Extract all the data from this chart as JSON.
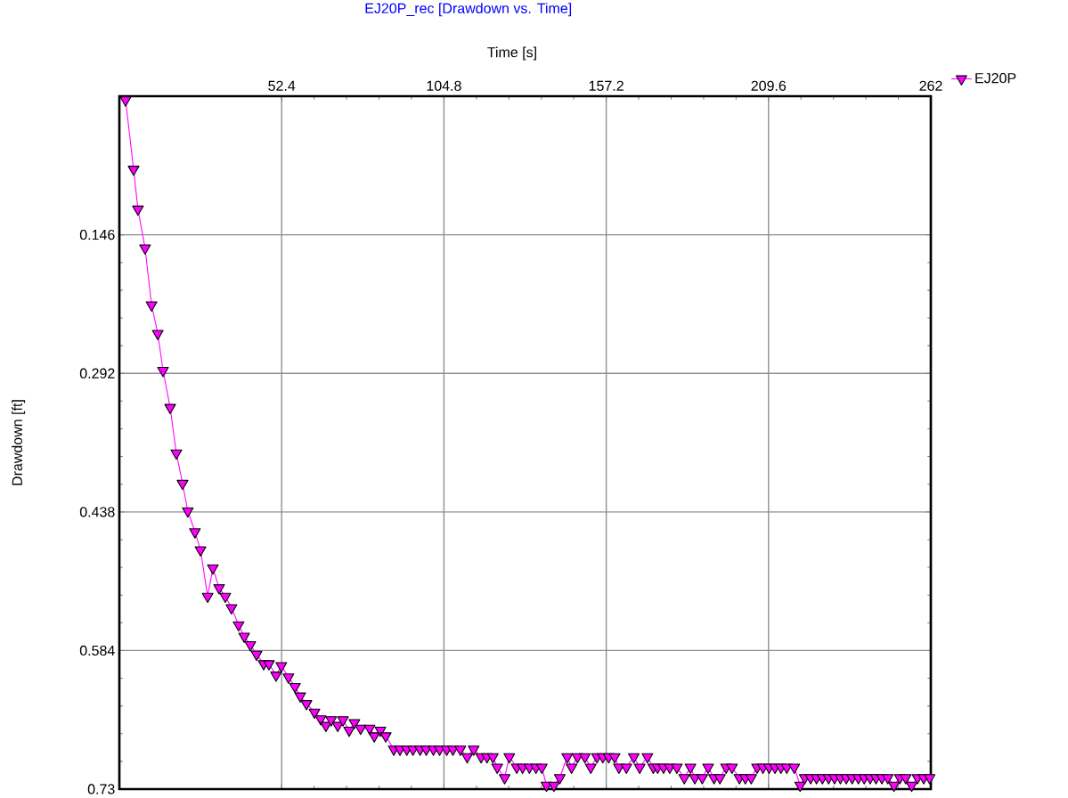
{
  "chart_data": {
    "type": "line",
    "title": "EJ20P_rec [Drawdown vs. Time]",
    "xlabel": "Time [s]",
    "ylabel": "Drawdown [ft]",
    "xlim": [
      0,
      262
    ],
    "xticks": [
      52.4,
      104.8,
      157.2,
      209.6,
      262
    ],
    "ylim": [
      0.73,
      0
    ],
    "yticks": [
      0.146,
      0.292,
      0.438,
      0.584,
      0.73
    ],
    "grid": true,
    "legend": "top right",
    "marker": "triangle",
    "line_style": "solid",
    "x": [
      2.0,
      4.6,
      6.0,
      8.3,
      10.4,
      12.4,
      14.1,
      16.4,
      18.4,
      20.4,
      22.1,
      24.4,
      26.2,
      28.5,
      30.2,
      32.2,
      34.2,
      36.2,
      38.5,
      40.3,
      42.3,
      44.3,
      46.6,
      48.3,
      50.6,
      52.3,
      54.6,
      56.7,
      58.4,
      60.4,
      63.0,
      65.0,
      66.7,
      68.4,
      70.5,
      72.2,
      74.2,
      75.9,
      77.9,
      80.8,
      82.3,
      84.3,
      86.0,
      88.6,
      90.6,
      92.8,
      94.8,
      97.1,
      99.1,
      101.4,
      103.4,
      105.7,
      107.7,
      110.1,
      112.3,
      114.4,
      116.8,
      118.7,
      120.6,
      122.0,
      124.4,
      125.9,
      128.3,
      130.2,
      132.4,
      134.5,
      136.4,
      137.9,
      140.3,
      142.2,
      144.6,
      146.0,
      147.9,
      150.3,
      152.2,
      154.2,
      156.1,
      158.0,
      159.9,
      161.3,
      163.7,
      166.1,
      168.0,
      170.5,
      172.4,
      173.8,
      175.7,
      177.7,
      180.0,
      182.4,
      184.4,
      185.8,
      188.2,
      190.1,
      192.0,
      193.9,
      195.9,
      197.8,
      200.2,
      202.1,
      204.0,
      205.9,
      207.8,
      209.8,
      211.7,
      213.6,
      215.5,
      217.9,
      219.8,
      221.3,
      223.2,
      225.1,
      227.0,
      229.0,
      230.9,
      232.8,
      234.7,
      236.6,
      238.6,
      240.5,
      242.4,
      244.3,
      246.2,
      248.1,
      250.1,
      252.0,
      253.9,
      255.8,
      257.7,
      259.7,
      261.6
    ],
    "series": [
      {
        "name": "EJ20P",
        "color": "#ff00ff",
        "values": [
          0.004,
          0.077,
          0.119,
          0.16,
          0.22,
          0.25,
          0.289,
          0.328,
          0.376,
          0.408,
          0.437,
          0.459,
          0.478,
          0.527,
          0.497,
          0.518,
          0.527,
          0.539,
          0.557,
          0.569,
          0.578,
          0.588,
          0.598,
          0.598,
          0.61,
          0.6,
          0.612,
          0.622,
          0.632,
          0.64,
          0.649,
          0.656,
          0.663,
          0.657,
          0.663,
          0.657,
          0.668,
          0.66,
          0.666,
          0.666,
          0.674,
          0.668,
          0.674,
          0.688,
          0.688,
          0.688,
          0.688,
          0.688,
          0.688,
          0.688,
          0.688,
          0.688,
          0.688,
          0.688,
          0.696,
          0.688,
          0.696,
          0.696,
          0.696,
          0.707,
          0.718,
          0.696,
          0.707,
          0.707,
          0.707,
          0.707,
          0.707,
          0.726,
          0.726,
          0.718,
          0.696,
          0.707,
          0.696,
          0.696,
          0.707,
          0.696,
          0.696,
          0.696,
          0.696,
          0.707,
          0.707,
          0.696,
          0.707,
          0.696,
          0.707,
          0.707,
          0.707,
          0.707,
          0.707,
          0.718,
          0.707,
          0.718,
          0.718,
          0.707,
          0.718,
          0.718,
          0.707,
          0.707,
          0.718,
          0.718,
          0.718,
          0.707,
          0.707,
          0.707,
          0.707,
          0.707,
          0.707,
          0.707,
          0.726,
          0.718,
          0.718,
          0.718,
          0.718,
          0.718,
          0.718,
          0.718,
          0.718,
          0.718,
          0.718,
          0.718,
          0.718,
          0.718,
          0.718,
          0.718,
          0.726,
          0.718,
          0.718,
          0.726,
          0.718,
          0.718,
          0.718
        ]
      }
    ]
  }
}
